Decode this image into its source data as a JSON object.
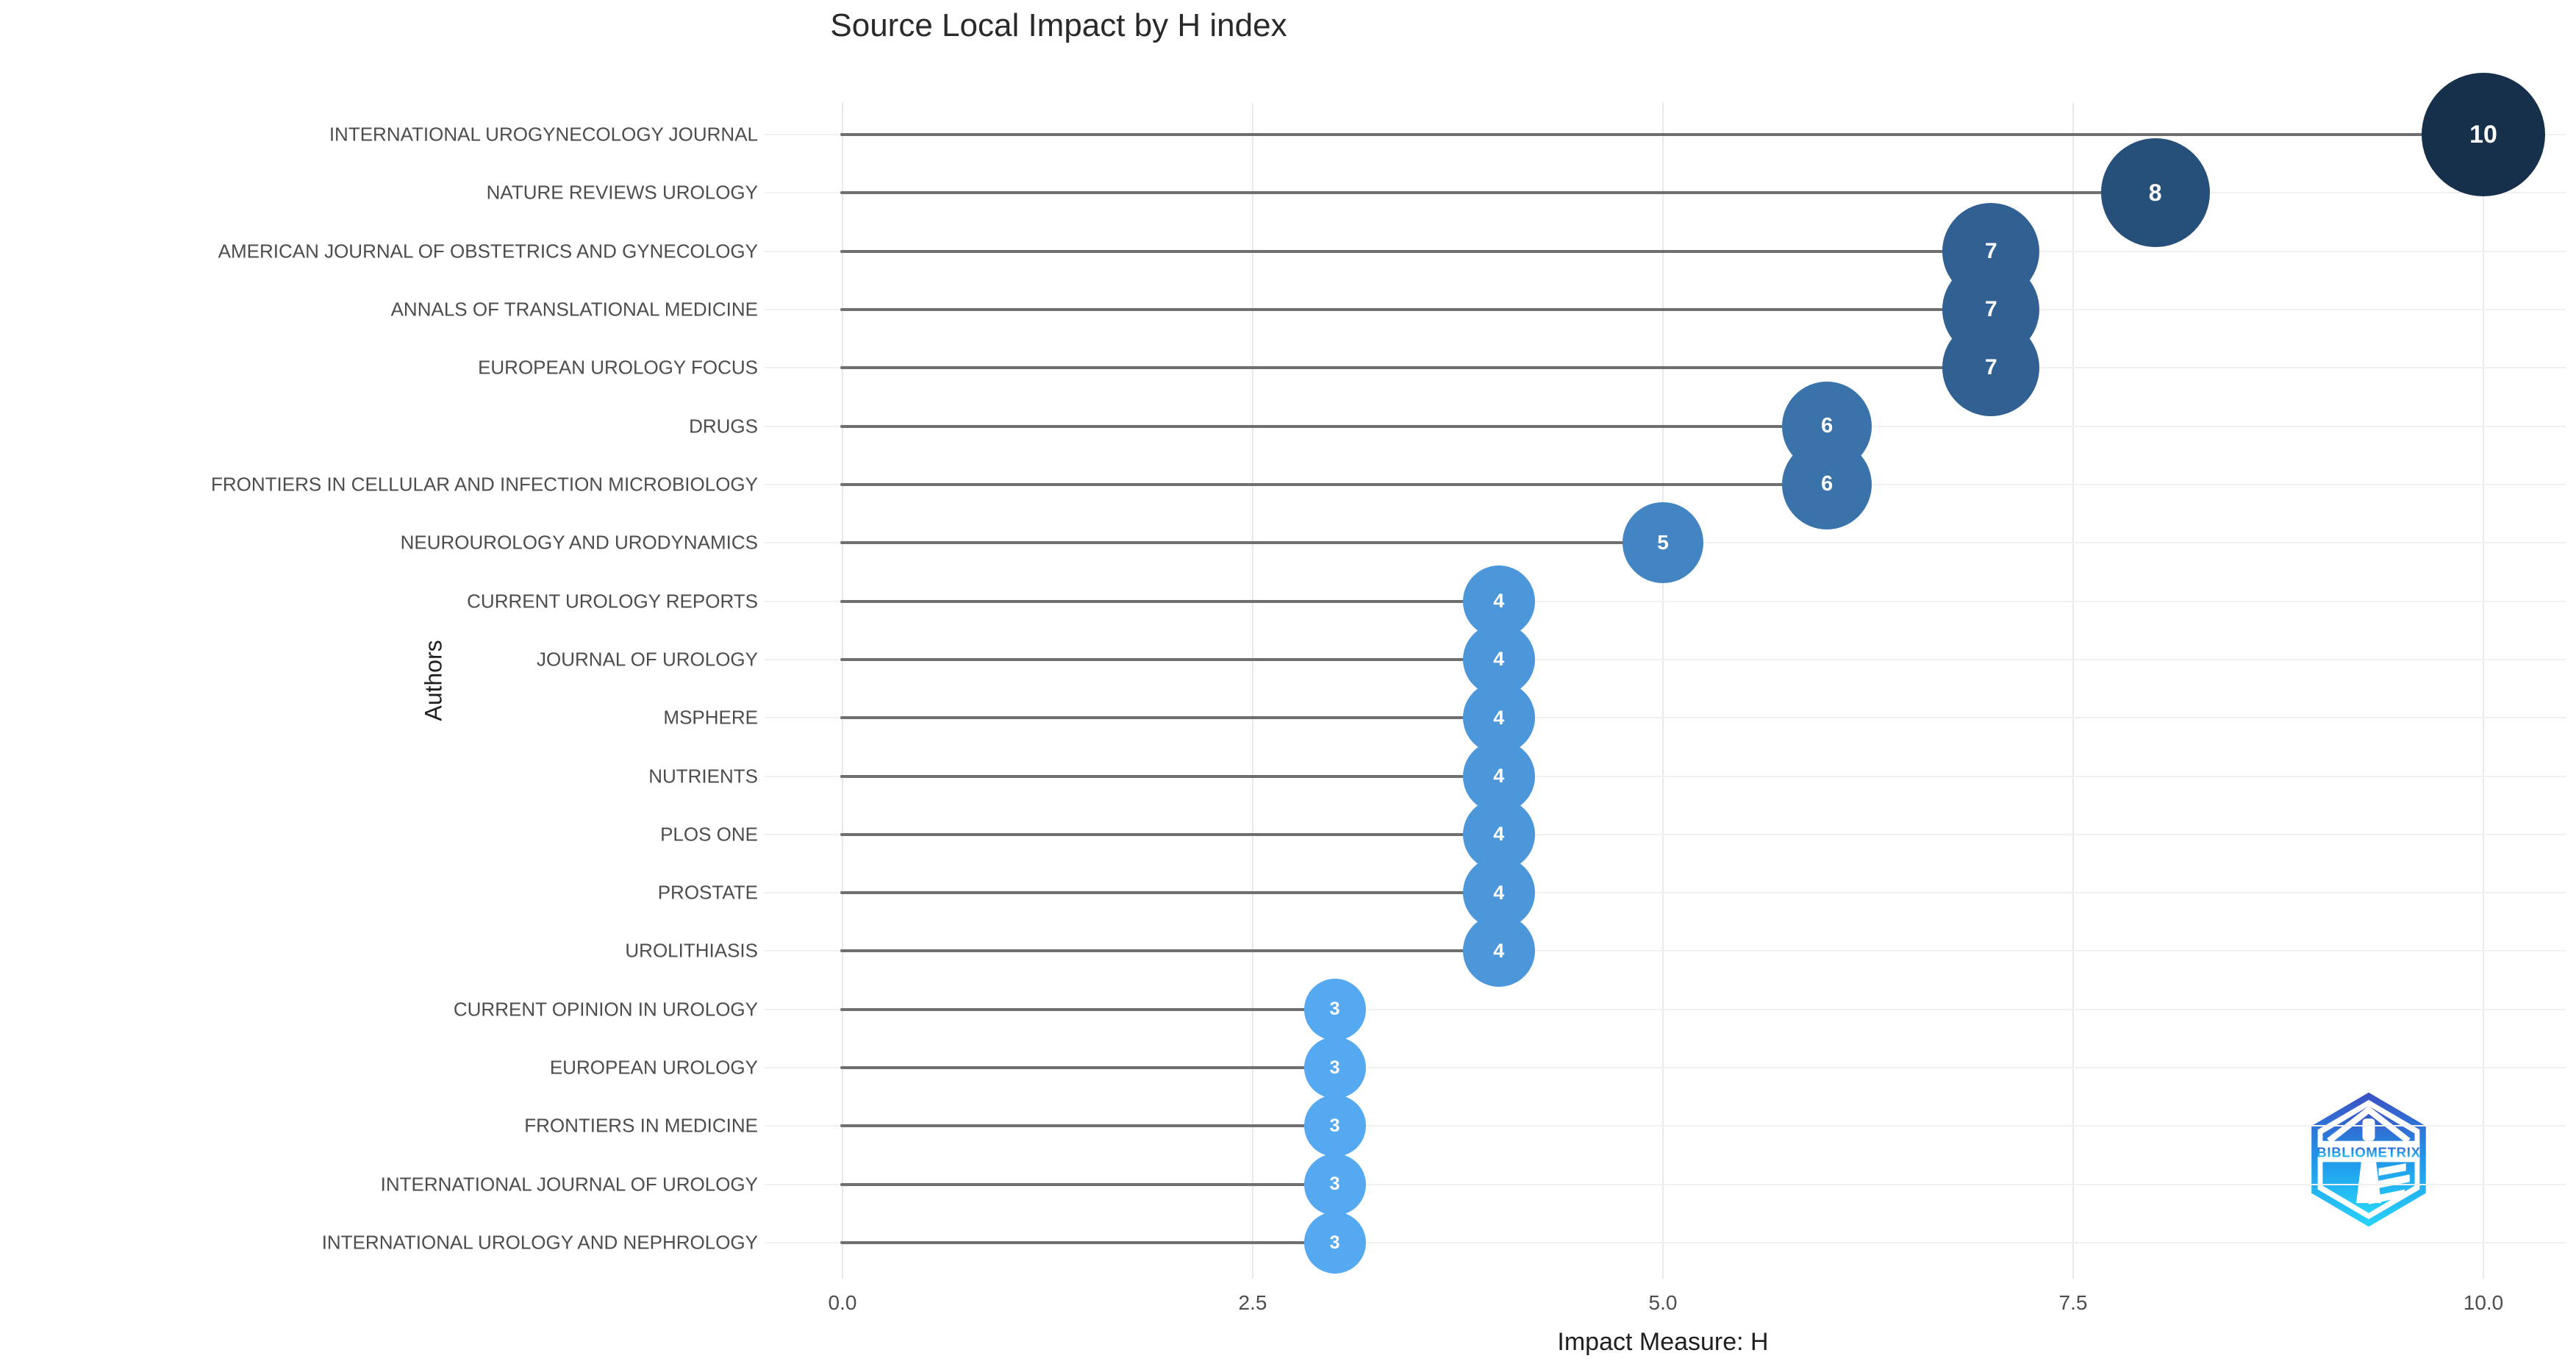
{
  "chart_data": {
    "type": "bar",
    "style": "lollipop-dot",
    "orientation": "horizontal",
    "title": "Source Local Impact by H index",
    "xlabel": "Impact Measure: H",
    "ylabel": "Authors",
    "xlim": [
      0,
      10
    ],
    "x_tick_values": [
      0,
      2.5,
      5,
      7.5,
      10
    ],
    "x_tick_labels": [
      "0.0",
      "2.5",
      "5.0",
      "7.5",
      "10.0"
    ],
    "grid": true,
    "legend": "none",
    "categories": [
      "INTERNATIONAL UROGYNECOLOGY JOURNAL",
      "NATURE REVIEWS UROLOGY",
      "AMERICAN JOURNAL OF OBSTETRICS AND GYNECOLOGY",
      "ANNALS OF TRANSLATIONAL MEDICINE",
      "EUROPEAN UROLOGY FOCUS",
      "DRUGS",
      "FRONTIERS IN CELLULAR AND INFECTION MICROBIOLOGY",
      "NEUROUROLOGY AND URODYNAMICS",
      "CURRENT UROLOGY REPORTS",
      "JOURNAL OF UROLOGY",
      "MSPHERE",
      "NUTRIENTS",
      "PLOS ONE",
      "PROSTATE",
      "UROLITHIASIS",
      "CURRENT OPINION IN UROLOGY",
      "EUROPEAN UROLOGY",
      "FRONTIERS IN MEDICINE",
      "INTERNATIONAL JOURNAL OF UROLOGY",
      "INTERNATIONAL UROLOGY AND NEPHROLOGY"
    ],
    "values": [
      10,
      8,
      7,
      7,
      7,
      6,
      6,
      5,
      4,
      4,
      4,
      4,
      4,
      4,
      4,
      3,
      3,
      3,
      3,
      3
    ],
    "point_styles": {
      "3": {
        "color": "#55a9f1",
        "radius": 42,
        "font": 25
      },
      "4": {
        "color": "#4c97da",
        "radius": 49,
        "font": 27
      },
      "5": {
        "color": "#4285c2",
        "radius": 55,
        "font": 28
      },
      "6": {
        "color": "#3973aa",
        "radius": 61,
        "font": 29
      },
      "7": {
        "color": "#306192",
        "radius": 66,
        "font": 30
      },
      "8": {
        "color": "#264f7a",
        "radius": 74,
        "font": 32
      },
      "10": {
        "color": "#16304c",
        "radius": 84,
        "font": 34
      }
    },
    "colors": {
      "stem": "#6f6f6f",
      "grid": "#eeeeee",
      "axis_text": "#4d4d4d",
      "axis_title": "#1f1f1f",
      "title_text": "#2a2a2a",
      "point_label": "#ffffff",
      "background": "#ffffff"
    }
  },
  "logo": {
    "label": "BIBLIOMETRIX",
    "gradient_top": "#3c50c3",
    "gradient_mid": "#2196ea",
    "gradient_bottom": "#27d4fa"
  }
}
